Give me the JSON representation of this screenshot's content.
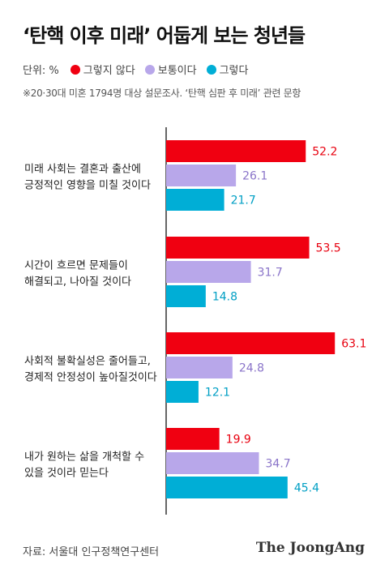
{
  "title": "‘탄핵 이후 미래’ 어둡게 보는 청년들",
  "legend": {
    "unit": "단위: %",
    "items": [
      {
        "label": "그렇지 않다",
        "color": "#f00011"
      },
      {
        "label": "보통이다",
        "color": "#b8a7ea"
      },
      {
        "label": "그렇다",
        "color": "#00aed6"
      }
    ]
  },
  "note": "※20·30대 미혼 1794명 대상 설문조사. ‘탄핵 심판 후 미래’ 관련 문항",
  "source": "자료: 서울대 인구정책연구센터",
  "logo": "The JoongAng",
  "chart_data": {
    "type": "bar",
    "orientation": "horizontal",
    "categories": [
      [
        "미래 사회는 결혼과 출산에",
        "긍정적인 영향을 미칠 것이다"
      ],
      [
        "시간이 흐르면 문제들이",
        "해결되고, 나아질 것이다"
      ],
      [
        "사회적 불확실성은 줄어들고,",
        "경제적 안정성이 높아질것이다"
      ],
      [
        "내가 원하는 삶을 개척할 수",
        "있을 것이라 믿는다"
      ]
    ],
    "series": [
      {
        "name": "그렇지 않다",
        "color": "#f00011",
        "values": [
          52.2,
          53.5,
          63.1,
          19.9
        ]
      },
      {
        "name": "보통이다",
        "color": "#b8a7ea",
        "values": [
          26.1,
          31.7,
          24.8,
          34.7
        ]
      },
      {
        "name": "그렇다",
        "color": "#00aed6",
        "values": [
          21.7,
          14.8,
          12.1,
          45.4
        ]
      }
    ],
    "value_labels": [
      [
        "52.2",
        "26.1",
        "21.7"
      ],
      [
        "53.5",
        "31.7",
        "14.8"
      ],
      [
        "63.1",
        "24.8",
        "12.1"
      ],
      [
        "19.9",
        "34.7",
        "45.4"
      ]
    ],
    "xlim": [
      0,
      100
    ],
    "label_colors": [
      "#e8000f",
      "#8a74c9",
      "#009fc4"
    ]
  }
}
